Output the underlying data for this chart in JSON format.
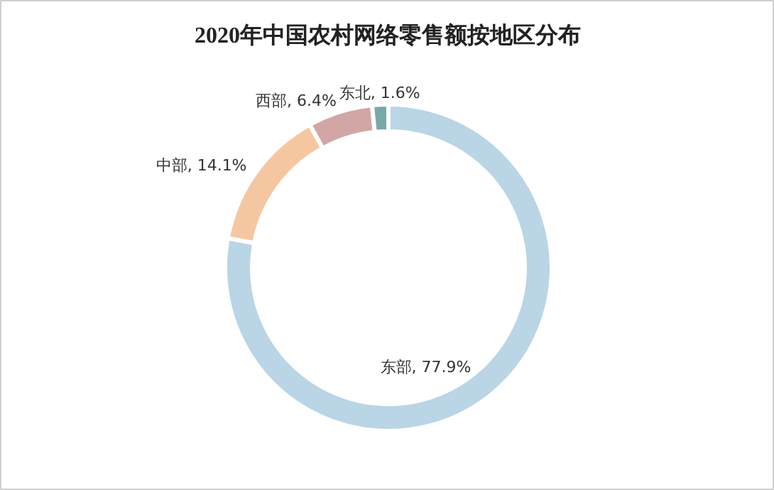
{
  "chart_data": {
    "type": "donut",
    "title": "2020年中国农村网络零售额按地区分布",
    "categories": [
      "东部",
      "中部",
      "西部",
      "东北"
    ],
    "values": [
      77.9,
      14.1,
      6.4,
      1.6
    ],
    "colors": [
      "#b9d5e6",
      "#f5c7a1",
      "#d3a6a6",
      "#78a9a9"
    ],
    "value_labels": [
      "77.9%",
      "14.1%",
      "6.4%",
      "1.6%"
    ]
  }
}
